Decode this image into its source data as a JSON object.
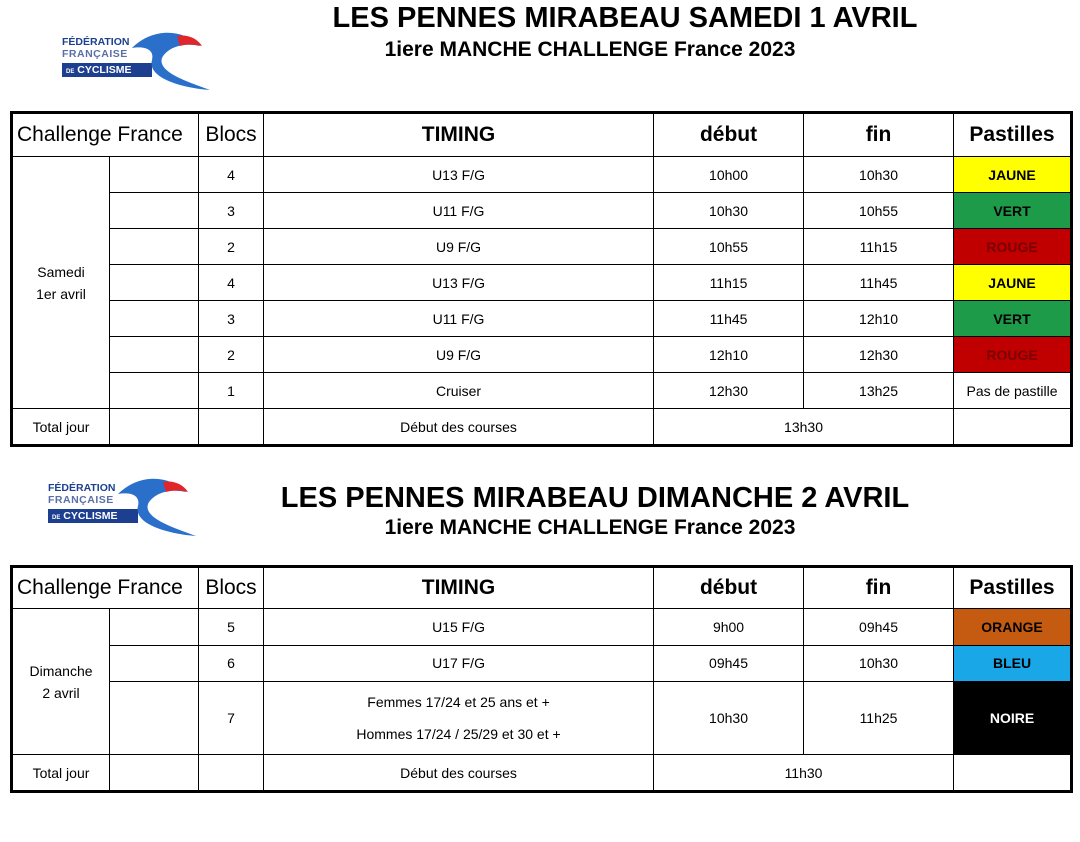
{
  "logo": {
    "line1": "FÉDÉRATION",
    "line2": "FRANÇAISE",
    "line3": "CYCLISME",
    "prefix": "DE"
  },
  "colors": {
    "JAUNE": "#ffff00",
    "VERT": "#1e9b48",
    "ROUGE": "#c00000",
    "ORANGE": "#c55a11",
    "BLEU": "#1aa7e8",
    "NOIRE": "#000000"
  },
  "headers": {
    "challenge": "Challenge France",
    "blocs": "Blocs",
    "timing": "TIMING",
    "debut": "début",
    "fin": "fin",
    "pastilles": "Pastilles"
  },
  "sections": [
    {
      "title": "LES PENNES MIRABEAU SAMEDI 1 AVRIL",
      "subtitle": "1iere MANCHE CHALLENGE France 2023",
      "day": "Samedi\n1er avril",
      "rows": [
        {
          "bloc": "4",
          "timing": "U13 F/G",
          "debut": "10h00",
          "fin": "10h30",
          "pastille": "JAUNE"
        },
        {
          "bloc": "3",
          "timing": "U11 F/G",
          "debut": "10h30",
          "fin": "10h55",
          "pastille": "VERT"
        },
        {
          "bloc": "2",
          "timing": "U9 F/G",
          "debut": "10h55",
          "fin": "11h15",
          "pastille": "ROUGE"
        },
        {
          "bloc": "4",
          "timing": "U13 F/G",
          "debut": "11h15",
          "fin": "11h45",
          "pastille": "JAUNE"
        },
        {
          "bloc": "3",
          "timing": "U11 F/G",
          "debut": "11h45",
          "fin": "12h10",
          "pastille": "VERT"
        },
        {
          "bloc": "2",
          "timing": "U9 F/G",
          "debut": "12h10",
          "fin": "12h30",
          "pastille": "ROUGE"
        },
        {
          "bloc": "1",
          "timing": "Cruiser",
          "debut": "12h30",
          "fin": "13h25",
          "pastille": "Pas de pastille"
        }
      ],
      "total": {
        "label": "Total jour",
        "text": "Début des courses",
        "time": "13h30"
      }
    },
    {
      "title": "LES PENNES MIRABEAU DIMANCHE 2 AVRIL",
      "subtitle": "1iere MANCHE CHALLENGE France 2023",
      "day": "Dimanche\n2 avril",
      "rows": [
        {
          "bloc": "5",
          "timing": "U15 F/G",
          "debut": "9h00",
          "fin": "09h45",
          "pastille": "ORANGE"
        },
        {
          "bloc": "6",
          "timing": "U17 F/G",
          "debut": "09h45",
          "fin": "10h30",
          "pastille": "BLEU"
        },
        {
          "bloc": "7",
          "timing": "Femmes  17/24 et 25 ans et +",
          "timing2": "Hommes  17/24 / 25/29 et 30 et +",
          "debut": "10h30",
          "fin": "11h25",
          "pastille": "NOIRE"
        }
      ],
      "total": {
        "label": "Total jour",
        "text": "Début des courses",
        "time": "11h30"
      }
    }
  ]
}
